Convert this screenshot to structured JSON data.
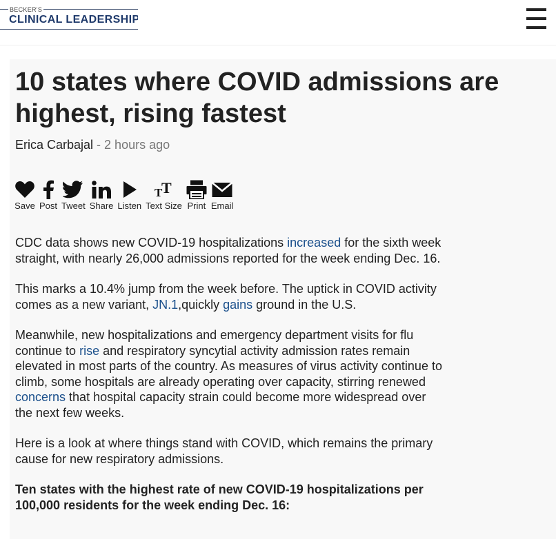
{
  "header": {
    "logo_small": "BECKER'S",
    "logo_main": "CLINICAL LEADERSHIP",
    "menu_icon": "hamburger-menu-icon"
  },
  "article": {
    "title": "10 states where COVID admissions are highest, rising fastest",
    "author": "Erica Carbajal",
    "separator": " - ",
    "time": "2 hours ago",
    "share": [
      {
        "label": "Save",
        "icon": "heart-icon"
      },
      {
        "label": "Post",
        "icon": "facebook-icon"
      },
      {
        "label": "Tweet",
        "icon": "twitter-icon"
      },
      {
        "label": "Share",
        "icon": "linkedin-icon"
      },
      {
        "label": "Listen",
        "icon": "play-icon"
      },
      {
        "label": "Text Size",
        "icon": "text-size-icon"
      },
      {
        "label": "Print",
        "icon": "print-icon"
      },
      {
        "label": "Email",
        "icon": "email-icon"
      }
    ],
    "p1": {
      "a": "CDC data shows new COVID-19 hospitalizations ",
      "link": "increased",
      "b": " for the sixth week straight, with nearly 26,000 admissions reported for the week ending Dec. 16."
    },
    "p2": {
      "a": "This marks a 10.4% jump from the week before. The uptick in COVID activity comes as a new variant, ",
      "link1": "JN.1",
      "b": ",quickly ",
      "link2": "gains",
      "c": " ground in the U.S."
    },
    "p3": {
      "a": "Meanwhile, new hospitalizations and emergency department visits for flu continue to ",
      "link1": "rise",
      "b": " and respiratory syncytial activity admission rates remain elevated in most parts of the country. As measures of virus activity continue to climb, some hospitals are already operating over capacity, stirring renewed ",
      "link2": "concerns",
      "c": " that hospital capacity strain could become more widespread over the next few weeks."
    },
    "p4": "Here is a look at where things stand with COVID, which remains the primary cause for new respiratory admissions.",
    "subhead": "Ten states with the highest rate of new COVID-19 hospitalizations per 100,000 residents for the week ending Dec. 16:",
    "link_color": "#1a4f8b"
  }
}
